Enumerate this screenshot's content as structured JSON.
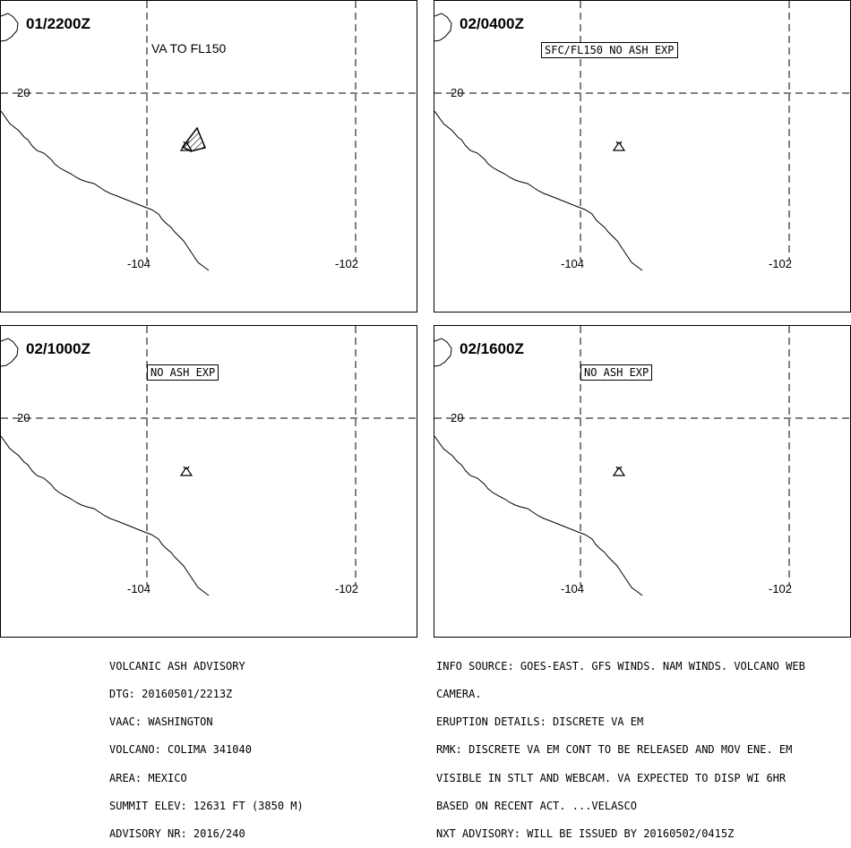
{
  "panels": [
    {
      "time": "01/2200Z",
      "label": "VA TO FL150",
      "label_style": "plain",
      "ash_polygon": true
    },
    {
      "time": "02/0400Z",
      "label": "SFC/FL150 NO ASH EXP",
      "label_style": "boxed",
      "ash_polygon": false
    },
    {
      "time": "02/1000Z",
      "label": "NO ASH EXP",
      "label_style": "boxed",
      "ash_polygon": false
    },
    {
      "time": "02/1600Z",
      "label": "NO ASH EXP",
      "label_style": "boxed",
      "ash_polygon": false
    }
  ],
  "axes": {
    "lat_label": "20",
    "lon_labels": [
      "-104",
      "-102"
    ]
  },
  "advisory_left": [
    "VOLCANIC ASH ADVISORY",
    "DTG: 20160501/2213Z",
    "VAAC: WASHINGTON",
    "VOLCANO: COLIMA 341040",
    "AREA: MEXICO",
    "SUMMIT ELEV: 12631 FT (3850 M)",
    "ADVISORY NR: 2016/240"
  ],
  "advisory_right": [
    "INFO SOURCE: GOES-EAST. GFS WINDS. NAM WINDS. VOLCANO WEB",
    "CAMERA.",
    "ERUPTION DETAILS: DISCRETE VA EM",
    "RMK: DISCRETE VA EM CONT TO BE RELEASED AND MOV ENE. EM",
    "VISIBLE IN STLT AND WEBCAM. VA EXPECTED TO DISP WI 6HR",
    "BASED ON RECENT ACT. ...VELASCO",
    "NXT ADVISORY: WILL BE ISSUED BY 20160502/0415Z"
  ],
  "icons": {
    "volcano": "volcano-symbol-icon"
  }
}
